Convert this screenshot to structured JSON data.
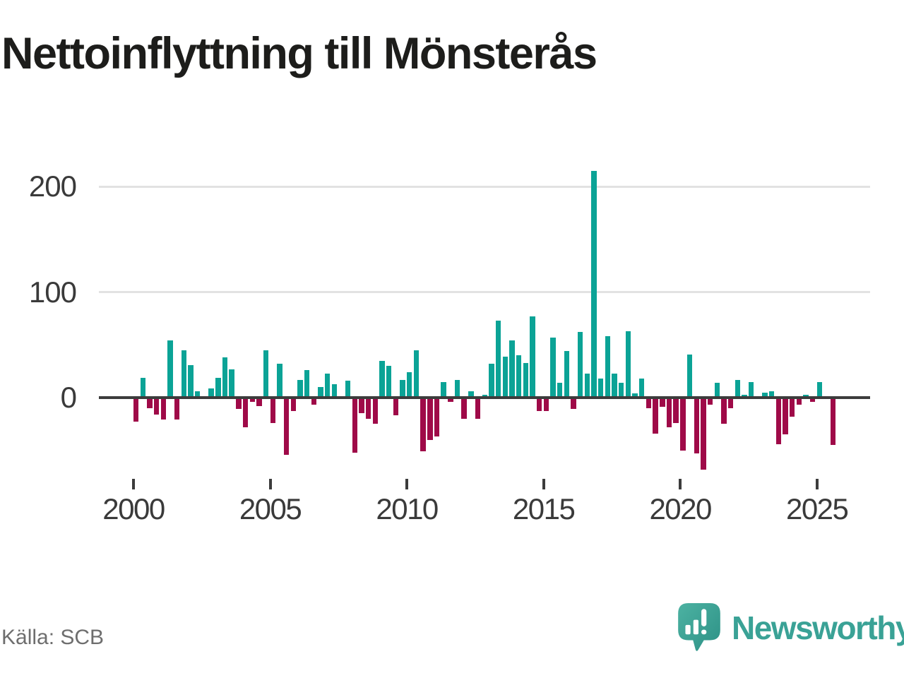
{
  "header": {
    "title": "Nettoinflyttning till Mönsterås"
  },
  "footer": {
    "source_label": "Källa: SCB",
    "brand": "Newsworthy"
  },
  "chart_data": {
    "type": "bar",
    "title": "Nettoinflyttning till Mönsterås",
    "source": "Källa: SCB",
    "period": "quarterly",
    "grid": "horizontal",
    "yticks": [
      0,
      100,
      200
    ],
    "ylim": [
      -80,
      230
    ],
    "xticks": [
      2000,
      2005,
      2010,
      2015,
      2020,
      2025
    ],
    "colors": {
      "positive": "#0ba396",
      "negative": "#9f0a48",
      "axis": "#3c3c3c",
      "gridline": "#e2e2e2",
      "brand_teal": "#3aa296"
    },
    "series_by_year": [
      {
        "year": 2000,
        "values": [
          -23,
          19,
          -10,
          -16
        ]
      },
      {
        "year": 2001,
        "values": [
          -21,
          54,
          -21,
          45
        ]
      },
      {
        "year": 2002,
        "values": [
          31,
          6,
          0,
          9
        ]
      },
      {
        "year": 2003,
        "values": [
          19,
          38,
          27,
          -11
        ]
      },
      {
        "year": 2004,
        "values": [
          -28,
          -4,
          -8,
          45
        ]
      },
      {
        "year": 2005,
        "values": [
          -24,
          32,
          -54,
          -13
        ]
      },
      {
        "year": 2006,
        "values": [
          17,
          26,
          -7,
          10
        ]
      },
      {
        "year": 2007,
        "values": [
          23,
          13,
          0,
          16
        ]
      },
      {
        "year": 2008,
        "values": [
          -52,
          -15,
          -20,
          -25
        ]
      },
      {
        "year": 2009,
        "values": [
          35,
          30,
          -17,
          17
        ]
      },
      {
        "year": 2010,
        "values": [
          24,
          45,
          -51,
          -40
        ]
      },
      {
        "year": 2011,
        "values": [
          -37,
          15,
          -4,
          17
        ]
      },
      {
        "year": 2012,
        "values": [
          -20,
          6,
          -20,
          3
        ]
      },
      {
        "year": 2013,
        "values": [
          32,
          73,
          39,
          54
        ]
      },
      {
        "year": 2014,
        "values": [
          40,
          33,
          77,
          -13
        ]
      },
      {
        "year": 2015,
        "values": [
          -13,
          57,
          14,
          44
        ]
      },
      {
        "year": 2016,
        "values": [
          -11,
          62,
          23,
          215
        ]
      },
      {
        "year": 2017,
        "values": [
          18,
          58,
          23,
          14
        ]
      },
      {
        "year": 2018,
        "values": [
          63,
          4,
          18,
          -10
        ]
      },
      {
        "year": 2019,
        "values": [
          -34,
          -9,
          -28,
          -24
        ]
      },
      {
        "year": 2020,
        "values": [
          -50,
          41,
          -53,
          -68
        ]
      },
      {
        "year": 2021,
        "values": [
          -7,
          14,
          -25,
          -10
        ]
      },
      {
        "year": 2022,
        "values": [
          17,
          3,
          15,
          0
        ]
      },
      {
        "year": 2023,
        "values": [
          5,
          6,
          -44,
          -35
        ]
      },
      {
        "year": 2024,
        "values": [
          -18,
          -7,
          3,
          -4
        ]
      },
      {
        "year": 2025,
        "values": [
          15,
          0,
          -45
        ]
      }
    ]
  }
}
